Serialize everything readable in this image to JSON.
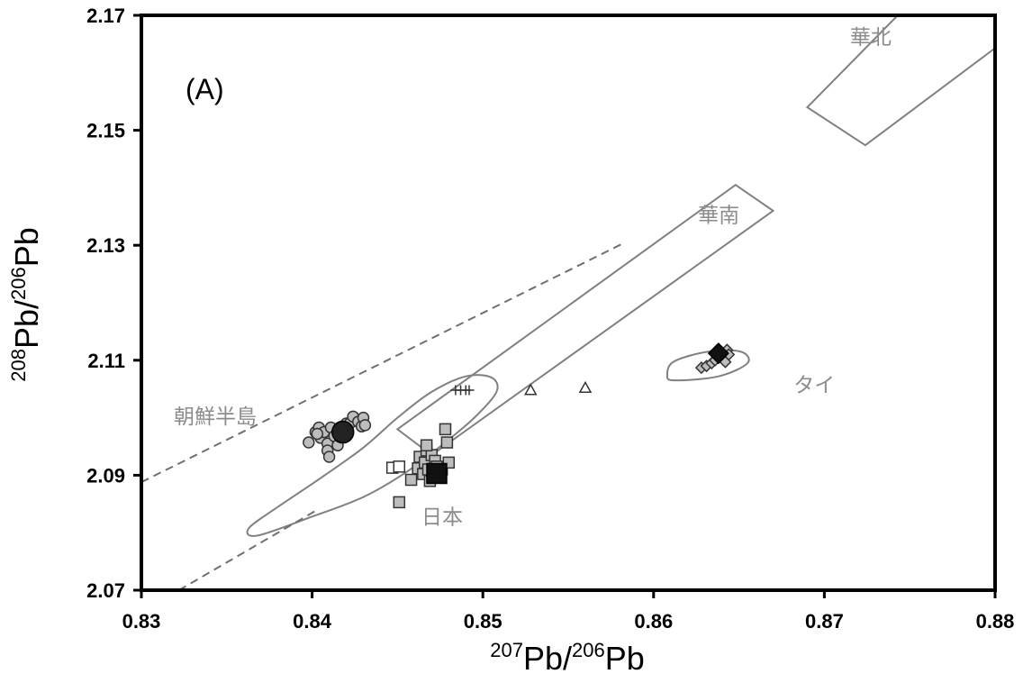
{
  "chart_data": {
    "type": "scatter",
    "title": "",
    "panel_label": "(A)",
    "xlabel": {
      "sup1": "207",
      "base1": "Pb/",
      "sup2": "206",
      "base2": "Pb"
    },
    "ylabel": {
      "sup1": "208",
      "base1": "Pb/",
      "sup2": "206",
      "base2": "Pb"
    },
    "xlim": [
      0.83,
      0.88
    ],
    "ylim": [
      2.07,
      2.17
    ],
    "xticks": [
      "0.83",
      "0.84",
      "0.85",
      "0.86",
      "0.87",
      "0.88"
    ],
    "yticks": [
      "2.07",
      "2.09",
      "2.11",
      "2.13",
      "2.15",
      "2.17"
    ],
    "grid": false,
    "regions": [
      {
        "name": "華北",
        "shape": "polygon",
        "points": [
          [
            0.869,
            2.154
          ],
          [
            0.8724,
            2.1474
          ],
          [
            0.88,
            2.1643
          ],
          [
            0.88,
            2.17
          ],
          [
            0.8797,
            2.17
          ],
          [
            0.8743,
            2.17
          ]
        ],
        "label_at": [
          0.8715,
          2.165
        ]
      },
      {
        "name": "華南",
        "shape": "polygon",
        "points": [
          [
            0.845,
            2.098
          ],
          [
            0.8648,
            2.1405
          ],
          [
            0.867,
            2.136
          ],
          [
            0.847,
            2.0935
          ]
        ],
        "label_at": [
          0.8626,
          2.134
        ]
      },
      {
        "name": "日本",
        "shape": "closed-curve",
        "points": [
          [
            0.8368,
            2.0795
          ],
          [
            0.84,
            2.0828
          ],
          [
            0.843,
            2.0862
          ],
          [
            0.8455,
            2.0905
          ],
          [
            0.8475,
            2.095
          ],
          [
            0.8495,
            2.1
          ],
          [
            0.8508,
            2.1045
          ],
          [
            0.8505,
            2.107
          ],
          [
            0.849,
            2.1072
          ],
          [
            0.847,
            2.1045
          ],
          [
            0.845,
            2.1
          ],
          [
            0.843,
            2.0948
          ],
          [
            0.8405,
            2.0895
          ],
          [
            0.838,
            2.0845
          ],
          [
            0.8363,
            2.0808
          ]
        ],
        "label_at": [
          0.8464,
          2.0815
        ]
      },
      {
        "name": "タイ",
        "shape": "closed-curve",
        "points": [
          [
            0.8612,
            2.1065
          ],
          [
            0.8638,
            2.1072
          ],
          [
            0.8655,
            2.1095
          ],
          [
            0.8651,
            2.1115
          ],
          [
            0.8632,
            2.1115
          ],
          [
            0.8612,
            2.1098
          ],
          [
            0.8608,
            2.1075
          ]
        ],
        "label_at": [
          0.8682,
          2.1045
        ]
      },
      {
        "name": "朝鮮半島",
        "shape": "dashed-wedge",
        "lines": [
          [
            [
              0.83,
              2.0888
            ],
            [
              0.8582,
              2.1303
            ]
          ],
          [
            [
              0.8322,
              2.07
            ],
            [
              0.8402,
              2.0838
            ]
          ]
        ],
        "label_at": [
          0.83,
          2.099
        ]
      }
    ],
    "series": [
      {
        "marker": "circle",
        "fill": "#bdbdbd",
        "edge": "#333333",
        "size": 12,
        "points": [
          [
            0.8398,
            2.0957
          ],
          [
            0.8402,
            2.0975
          ],
          [
            0.8404,
            2.0983
          ],
          [
            0.8405,
            2.0965
          ],
          [
            0.8407,
            2.0975
          ],
          [
            0.8409,
            2.0955
          ],
          [
            0.8409,
            2.0943
          ],
          [
            0.841,
            2.0932
          ],
          [
            0.8411,
            2.0983
          ],
          [
            0.8413,
            2.0968
          ],
          [
            0.8415,
            2.0952
          ],
          [
            0.8417,
            2.0978
          ],
          [
            0.842,
            2.099
          ],
          [
            0.8422,
            2.099
          ],
          [
            0.8424,
            2.1002
          ],
          [
            0.8427,
            2.0993
          ],
          [
            0.8429,
            2.0985
          ],
          [
            0.843,
            2.1
          ],
          [
            0.8431,
            2.0987
          ],
          [
            0.8403,
            2.0972
          ]
        ]
      },
      {
        "marker": "circle",
        "fill": "#222222",
        "edge": "#000000",
        "size": 24,
        "points": [
          [
            0.8418,
            2.0975
          ]
        ]
      },
      {
        "marker": "square",
        "fill": "#bdbdbd",
        "edge": "#333333",
        "size": 12,
        "points": [
          [
            0.8451,
            2.0853
          ],
          [
            0.8458,
            2.0892
          ],
          [
            0.8462,
            2.0912
          ],
          [
            0.8463,
            2.0932
          ],
          [
            0.8465,
            2.0902
          ],
          [
            0.8466,
            2.0922
          ],
          [
            0.8467,
            2.0943
          ],
          [
            0.8468,
            2.091
          ],
          [
            0.8469,
            2.089
          ],
          [
            0.847,
            2.0935
          ],
          [
            0.8471,
            2.0902
          ],
          [
            0.8472,
            2.0925
          ],
          [
            0.8473,
            2.0915
          ],
          [
            0.8474,
            2.0897
          ],
          [
            0.8476,
            2.091
          ],
          [
            0.8478,
            2.098
          ],
          [
            0.8479,
            2.0957
          ],
          [
            0.848,
            2.0922
          ],
          [
            0.8467,
            2.0952
          ]
        ]
      },
      {
        "marker": "square",
        "fill": "#ffffff",
        "edge": "#333333",
        "size": 12,
        "points": [
          [
            0.8447,
            2.0913
          ],
          [
            0.8451,
            2.0915
          ]
        ]
      },
      {
        "marker": "square",
        "fill": "#111111",
        "edge": "#000000",
        "size": 22,
        "points": [
          [
            0.8473,
            2.0903
          ]
        ]
      },
      {
        "marker": "plus",
        "fill": "none",
        "edge": "#333333",
        "size": 11,
        "points": [
          [
            0.8484,
            2.1048
          ],
          [
            0.8487,
            2.1048
          ],
          [
            0.849,
            2.1048
          ],
          [
            0.8492,
            2.1048
          ]
        ]
      },
      {
        "marker": "triangle",
        "fill": "#ffffff",
        "edge": "#333333",
        "size": 12,
        "points": [
          [
            0.8528,
            2.1048
          ],
          [
            0.856,
            2.1052
          ]
        ]
      },
      {
        "marker": "diamond",
        "fill": "#bdbdbd",
        "edge": "#333333",
        "size": 12,
        "points": [
          [
            0.8628,
            2.1087
          ],
          [
            0.8631,
            2.109
          ],
          [
            0.8634,
            2.1095
          ],
          [
            0.8636,
            2.11
          ],
          [
            0.8638,
            2.1105
          ],
          [
            0.864,
            2.1112
          ],
          [
            0.8643,
            2.1118
          ],
          [
            0.8644,
            2.111
          ],
          [
            0.8642,
            2.1097
          ]
        ]
      },
      {
        "marker": "diamond",
        "fill": "#111111",
        "edge": "#000000",
        "size": 22,
        "points": [
          [
            0.8638,
            2.1112
          ]
        ]
      }
    ]
  }
}
